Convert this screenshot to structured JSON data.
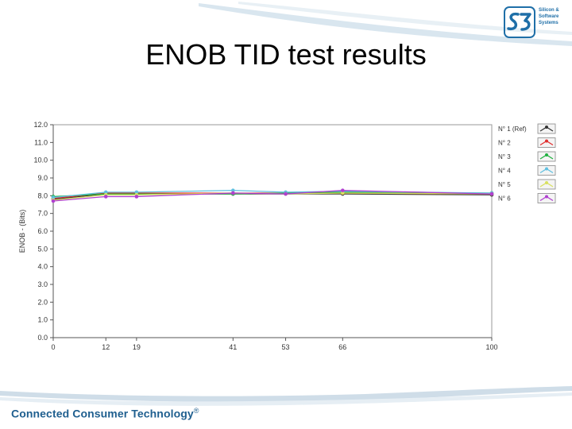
{
  "slide": {
    "title": "ENOB TID test results",
    "footer": "Connected Consumer Technology",
    "footer_mark": "®"
  },
  "logo": {
    "mark": "S3",
    "lines": [
      "Silicon &",
      "Software",
      "Systems"
    ],
    "color": "#1f6fa8"
  },
  "chart_data": {
    "type": "line",
    "title": "",
    "xlabel": "",
    "ylabel": "ENOB - (Bits)",
    "x": [
      0,
      12,
      19,
      41,
      53,
      66,
      100
    ],
    "x_tick_labels": [
      "0",
      "12",
      "19",
      "41",
      "53",
      "66",
      "100"
    ],
    "ylim": [
      0,
      12
    ],
    "y_tick_labels": [
      "0.0",
      "1.0",
      "2.0",
      "3.0",
      "4.0",
      "5.0",
      "6.0",
      "7.0",
      "8.0",
      "9.0",
      "10.0",
      "11.0",
      "12.0"
    ],
    "grid": false,
    "legend_position": "right",
    "series": [
      {
        "name": "N° 1 (Ref)",
        "color": "#333333",
        "values": [
          7.8,
          8.1,
          8.1,
          8.1,
          8.1,
          8.1,
          8.05
        ]
      },
      {
        "name": "N° 2",
        "color": "#e03030",
        "values": [
          7.85,
          8.15,
          8.15,
          8.15,
          8.15,
          8.15,
          8.1
        ]
      },
      {
        "name": "N° 3",
        "color": "#20b040",
        "values": [
          7.95,
          8.1,
          8.1,
          8.1,
          8.15,
          8.2,
          8.15
        ]
      },
      {
        "name": "N° 4",
        "color": "#60c0e0",
        "values": [
          7.9,
          8.2,
          8.2,
          8.3,
          8.2,
          8.25,
          8.15
        ]
      },
      {
        "name": "N° 5",
        "color": "#d8e060",
        "values": [
          7.75,
          8.05,
          8.05,
          8.15,
          8.1,
          8.15,
          8.1
        ]
      },
      {
        "name": "N° 6",
        "color": "#b040d0",
        "values": [
          7.7,
          7.95,
          7.95,
          8.15,
          8.1,
          8.3,
          8.1
        ]
      }
    ]
  }
}
